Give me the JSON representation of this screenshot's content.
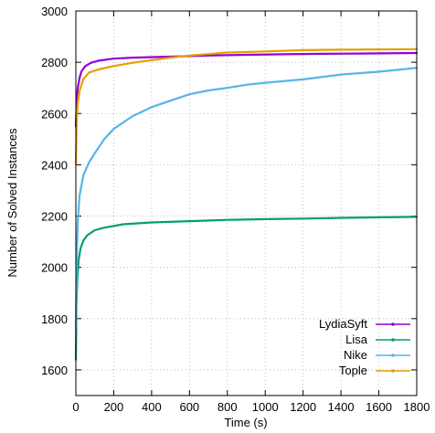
{
  "chart_data": {
    "type": "line",
    "title": "",
    "xlabel": "Time (s)",
    "ylabel": "Number of Solved Instances",
    "xlim": [
      0,
      1800
    ],
    "ylim": [
      1500,
      3000
    ],
    "x_ticks": [
      0,
      200,
      400,
      600,
      800,
      1000,
      1200,
      1400,
      1600,
      1800
    ],
    "y_ticks": [
      1600,
      1800,
      2000,
      2200,
      2400,
      2600,
      2800,
      3000
    ],
    "grid": true,
    "legend_position": "bottom-right",
    "series": [
      {
        "name": "LydiaSyft",
        "color": "#9400d3",
        "points": [
          [
            0,
            2550
          ],
          [
            5,
            2660
          ],
          [
            10,
            2700
          ],
          [
            20,
            2740
          ],
          [
            30,
            2765
          ],
          [
            50,
            2785
          ],
          [
            80,
            2798
          ],
          [
            120,
            2806
          ],
          [
            200,
            2814
          ],
          [
            300,
            2818
          ],
          [
            500,
            2822
          ],
          [
            700,
            2826
          ],
          [
            900,
            2829
          ],
          [
            1100,
            2831
          ],
          [
            1300,
            2833
          ],
          [
            1500,
            2834
          ],
          [
            1800,
            2836
          ]
        ]
      },
      {
        "name": "Lisa",
        "color": "#009e73",
        "points": [
          [
            0,
            1640
          ],
          [
            3,
            1850
          ],
          [
            8,
            1960
          ],
          [
            15,
            2030
          ],
          [
            25,
            2075
          ],
          [
            40,
            2105
          ],
          [
            60,
            2125
          ],
          [
            100,
            2145
          ],
          [
            150,
            2155
          ],
          [
            250,
            2168
          ],
          [
            400,
            2175
          ],
          [
            600,
            2180
          ],
          [
            800,
            2185
          ],
          [
            1000,
            2188
          ],
          [
            1200,
            2190
          ],
          [
            1400,
            2193
          ],
          [
            1600,
            2195
          ],
          [
            1800,
            2197
          ]
        ]
      },
      {
        "name": "Nike",
        "color": "#56b4e9",
        "points": [
          [
            0,
            1760
          ],
          [
            5,
            2040
          ],
          [
            10,
            2180
          ],
          [
            20,
            2280
          ],
          [
            40,
            2360
          ],
          [
            70,
            2410
          ],
          [
            100,
            2445
          ],
          [
            150,
            2500
          ],
          [
            200,
            2540
          ],
          [
            300,
            2590
          ],
          [
            400,
            2625
          ],
          [
            500,
            2650
          ],
          [
            600,
            2675
          ],
          [
            700,
            2690
          ],
          [
            800,
            2700
          ],
          [
            900,
            2712
          ],
          [
            1000,
            2720
          ],
          [
            1200,
            2733
          ],
          [
            1400,
            2752
          ],
          [
            1600,
            2763
          ],
          [
            1800,
            2778
          ]
        ]
      },
      {
        "name": "Tople",
        "color": "#e69f00",
        "points": [
          [
            0,
            2400
          ],
          [
            5,
            2580
          ],
          [
            10,
            2640
          ],
          [
            20,
            2690
          ],
          [
            40,
            2735
          ],
          [
            70,
            2760
          ],
          [
            120,
            2772
          ],
          [
            200,
            2785
          ],
          [
            300,
            2798
          ],
          [
            400,
            2808
          ],
          [
            500,
            2818
          ],
          [
            600,
            2826
          ],
          [
            700,
            2832
          ],
          [
            800,
            2838
          ],
          [
            1000,
            2842
          ],
          [
            1200,
            2847
          ],
          [
            1400,
            2849
          ],
          [
            1600,
            2850
          ],
          [
            1800,
            2851
          ]
        ]
      }
    ]
  }
}
